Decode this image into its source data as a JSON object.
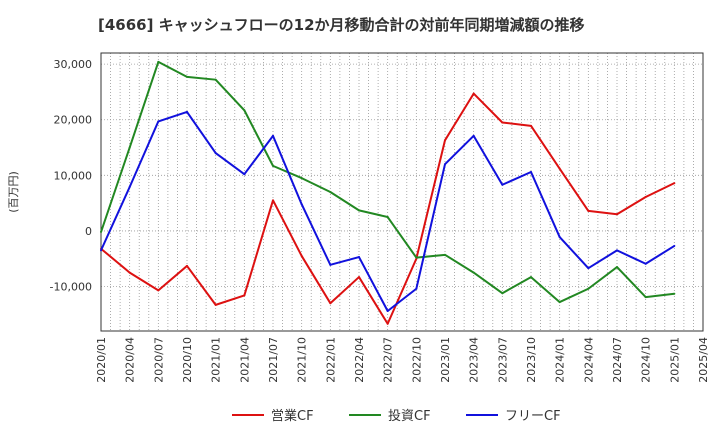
{
  "chart_data": {
    "type": "line",
    "title": "[4666]  キャッシュフローの12か月移動合計の対前年同期増減額の推移",
    "ylabel": "(百万円)",
    "xlabel": "",
    "ylim": [
      -18000,
      32000
    ],
    "yticks": [
      -10000,
      0,
      10000,
      20000,
      30000
    ],
    "ytick_labels": [
      "-10,000",
      "0",
      "10,000",
      "20,000",
      "30,000"
    ],
    "x_tick_labels": [
      "2020/01",
      "2020/04",
      "2020/07",
      "2020/10",
      "2021/01",
      "2021/04",
      "2021/07",
      "2021/10",
      "2022/01",
      "2022/04",
      "2022/07",
      "2022/10",
      "2023/01",
      "2023/04",
      "2023/07",
      "2023/10",
      "2024/01",
      "2024/04",
      "2024/07",
      "2024/10",
      "2025/01",
      "2025/04"
    ],
    "grid": true,
    "legend_position": "bottom",
    "series": [
      {
        "name": "営業CF",
        "color": "#dd1111",
        "values": [
          -3200,
          -7500,
          -10700,
          -6300,
          -13300,
          -11600,
          5500,
          -4500,
          -13000,
          -8300,
          -16700,
          -5000,
          16300,
          24700,
          19500,
          18900,
          11200,
          3600,
          3000,
          6100,
          8600
        ]
      },
      {
        "name": "投資CF",
        "color": "#228822",
        "values": [
          -200,
          15000,
          30400,
          27700,
          27200,
          21700,
          11700,
          9500,
          7000,
          3700,
          2500,
          -4800,
          -4300,
          -7500,
          -11200,
          -8300,
          -12800,
          -10400,
          -6500,
          -11900,
          -11300
        ]
      },
      {
        "name": "フリーCF",
        "color": "#1111dd",
        "values": [
          -3500,
          7900,
          19700,
          21400,
          14000,
          10200,
          17100,
          4800,
          -6100,
          -4700,
          -14400,
          -10400,
          12000,
          17100,
          8300,
          10600,
          -1100,
          -6700,
          -3500,
          -5900,
          -2700
        ]
      }
    ]
  }
}
